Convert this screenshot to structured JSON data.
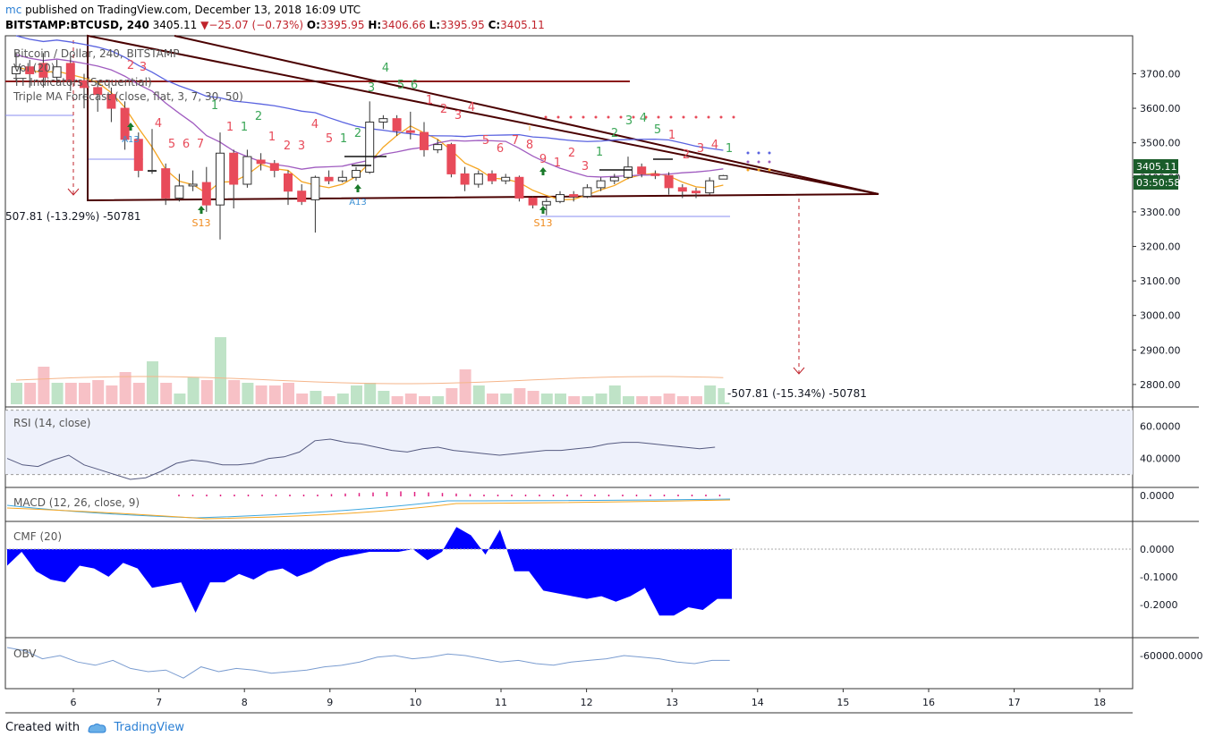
{
  "header": {
    "author": "mc",
    "published": "published on TradingView.com, December 13, 2018 16:09 UTC",
    "symbol": "BITSTAMP:BTCUSD, 240",
    "last": "3405.11",
    "change": "−25.07 (−0.73%)",
    "open_label": "O:",
    "open": "3395.95",
    "high_label": "H:",
    "high": "3406.66",
    "low_label": "L:",
    "low": "3395.95",
    "close_label": "C:",
    "close": "3405.11"
  },
  "legend": [
    "Bitcoin / Dollar, 240, BITSTAMP",
    "Vol (20)",
    "TT Indicators (Sequential)",
    "Triple MA Forecast (close, flat, 3, 7, 30, 50)"
  ],
  "price_badge": "3405.11",
  "countdown_badge": "03:50:58",
  "annotation_left": "507.81 (-13.29%) -50781",
  "annotation_right": "-507.81 (-15.34%) -50781",
  "seq_labels": {
    "a13": "A13",
    "s13": "S13"
  },
  "panes": {
    "rsi": "RSI (14, close)",
    "macd": "MACD (12, 26, close, 9)",
    "cmf": "CMF (20)",
    "obv": "OBV"
  },
  "footer": {
    "created": "Created with",
    "brand": "TradingView"
  },
  "colors": {
    "up": "#ffffff",
    "down": "#e84b5a",
    "ma_fast": "#f5a623",
    "ma_mid": "#a05cc0",
    "ma_slow": "#5a63e0",
    "cmf": "#0000ff",
    "triangle": "#4a0000",
    "seq_red": "#e84b5a",
    "seq_green": "#3aa657"
  },
  "chart_data": {
    "type": "candlestick",
    "x_ticks": [
      "6",
      "7",
      "8",
      "9",
      "10",
      "11",
      "12",
      "13",
      "14",
      "15",
      "16",
      "17",
      "18"
    ],
    "y_ticks": [
      "3700.00",
      "3600.00",
      "3500.00",
      "3400.00",
      "3300.00",
      "3200.00",
      "3100.00",
      "3000.00",
      "2900.00",
      "2800.00"
    ],
    "ylim": [
      2735,
      3810
    ],
    "candles": [
      [
        3700,
        3720,
        3680,
        3760
      ],
      [
        3720,
        3700,
        3660,
        3740
      ],
      [
        3730,
        3690,
        3660,
        3760
      ],
      [
        3690,
        3720,
        3670,
        3740
      ],
      [
        3730,
        3680,
        3650,
        3750
      ],
      [
        3680,
        3660,
        3600,
        3700
      ],
      [
        3660,
        3640,
        3590,
        3680
      ],
      [
        3640,
        3600,
        3560,
        3660
      ],
      [
        3600,
        3510,
        3480,
        3620
      ],
      [
        3510,
        3420,
        3400,
        3530
      ],
      [
        3420,
        3420,
        3410,
        3540
      ],
      [
        3425,
        3340,
        3320,
        3440
      ],
      [
        3340,
        3375,
        3330,
        3410
      ],
      [
        3375,
        3380,
        3360,
        3420
      ],
      [
        3385,
        3320,
        3300,
        3430
      ],
      [
        3320,
        3470,
        3220,
        3530
      ],
      [
        3470,
        3380,
        3310,
        3480
      ],
      [
        3380,
        3460,
        3370,
        3480
      ],
      [
        3450,
        3440,
        3420,
        3470
      ],
      [
        3440,
        3420,
        3400,
        3450
      ],
      [
        3410,
        3360,
        3320,
        3420
      ],
      [
        3360,
        3330,
        3320,
        3380
      ],
      [
        3335,
        3400,
        3240,
        3405
      ],
      [
        3400,
        3390,
        3380,
        3420
      ],
      [
        3390,
        3400,
        3385,
        3420
      ],
      [
        3400,
        3420,
        3390,
        3430
      ],
      [
        3415,
        3560,
        3410,
        3620
      ],
      [
        3560,
        3570,
        3540,
        3580
      ],
      [
        3570,
        3535,
        3520,
        3580
      ],
      [
        3535,
        3530,
        3510,
        3590
      ],
      [
        3530,
        3480,
        3460,
        3560
      ],
      [
        3480,
        3495,
        3470,
        3510
      ],
      [
        3495,
        3410,
        3400,
        3500
      ],
      [
        3410,
        3380,
        3360,
        3430
      ],
      [
        3380,
        3410,
        3370,
        3420
      ],
      [
        3410,
        3390,
        3380,
        3420
      ],
      [
        3390,
        3400,
        3380,
        3410
      ],
      [
        3400,
        3340,
        3330,
        3405
      ],
      [
        3340,
        3320,
        3310,
        3345
      ],
      [
        3320,
        3330,
        3290,
        3340
      ],
      [
        3330,
        3350,
        3325,
        3360
      ],
      [
        3350,
        3345,
        3330,
        3360
      ],
      [
        3345,
        3370,
        3340,
        3380
      ],
      [
        3370,
        3390,
        3360,
        3400
      ],
      [
        3390,
        3400,
        3380,
        3410
      ],
      [
        3400,
        3430,
        3395,
        3460
      ],
      [
        3430,
        3410,
        3400,
        3440
      ],
      [
        3410,
        3405,
        3395,
        3420
      ],
      [
        3405,
        3370,
        3350,
        3415
      ],
      [
        3370,
        3360,
        3340,
        3380
      ],
      [
        3360,
        3355,
        3340,
        3370
      ],
      [
        3355,
        3390,
        3350,
        3400
      ],
      [
        3395,
        3405,
        3395,
        3407
      ]
    ],
    "volume": [
      8,
      8,
      14,
      8,
      8,
      8,
      9,
      7,
      12,
      8,
      16,
      8,
      4,
      10,
      9,
      25,
      9,
      8,
      7,
      7,
      8,
      4,
      5,
      3,
      4,
      7,
      8,
      5,
      3,
      4,
      3,
      3,
      6,
      13,
      7,
      4,
      4,
      6,
      5,
      4,
      4,
      3,
      3,
      4,
      7,
      3,
      3,
      3,
      4,
      3,
      3,
      7,
      6
    ],
    "rsi_ylim": [
      22,
      72
    ],
    "rsi": [
      40,
      36,
      35,
      39,
      42,
      36,
      33,
      30,
      27,
      28,
      32,
      37,
      39,
      38,
      36,
      36,
      37,
      40,
      41,
      44,
      51,
      52,
      50,
      49,
      47,
      45,
      44,
      46,
      47,
      45,
      44,
      43,
      42,
      43,
      44,
      45,
      45,
      46,
      47,
      49,
      50,
      50,
      49,
      48,
      47,
      46,
      47
    ],
    "cmf_ylim": [
      -0.32,
      0.1
    ],
    "cmf": [
      -0.06,
      -0.01,
      -0.08,
      -0.11,
      -0.12,
      -0.06,
      -0.07,
      -0.1,
      -0.05,
      -0.07,
      -0.14,
      -0.13,
      -0.12,
      -0.23,
      -0.12,
      -0.12,
      -0.09,
      -0.11,
      -0.08,
      -0.07,
      -0.1,
      -0.08,
      -0.05,
      -0.03,
      -0.02,
      -0.01,
      -0.01,
      -0.01,
      0,
      -0.04,
      -0.01,
      0.08,
      0.05,
      -0.02,
      0.07,
      -0.08,
      -0.08,
      -0.15,
      -0.16,
      -0.17,
      -0.18,
      -0.17,
      -0.19,
      -0.17,
      -0.14,
      -0.24,
      -0.24,
      -0.21,
      -0.22,
      -0.18,
      -0.18
    ],
    "obv": [
      -55000,
      -57000,
      -62000,
      -60000,
      -64000,
      -66000,
      -63000,
      -68000,
      -70000,
      -69000,
      -74000,
      -67000,
      -70000,
      -68000,
      -69000,
      -71000,
      -70000,
      -69000,
      -67000,
      -66000,
      -64000,
      -61000,
      -60000,
      -62000,
      -61000,
      -59000,
      -60000,
      -62000,
      -64000,
      -63000,
      -65000,
      -66000,
      -64000,
      -63000,
      -62000,
      -60000,
      -61000,
      -62000,
      -64000,
      -65000,
      -63000,
      -63000
    ],
    "obv_tick": "-60000.0000",
    "rsi_ticks": [
      "60.0000",
      "40.0000"
    ],
    "macd_tick": "0.0000",
    "cmf_ticks": [
      "0.0000",
      "-0.1000",
      "-0.2000"
    ]
  }
}
